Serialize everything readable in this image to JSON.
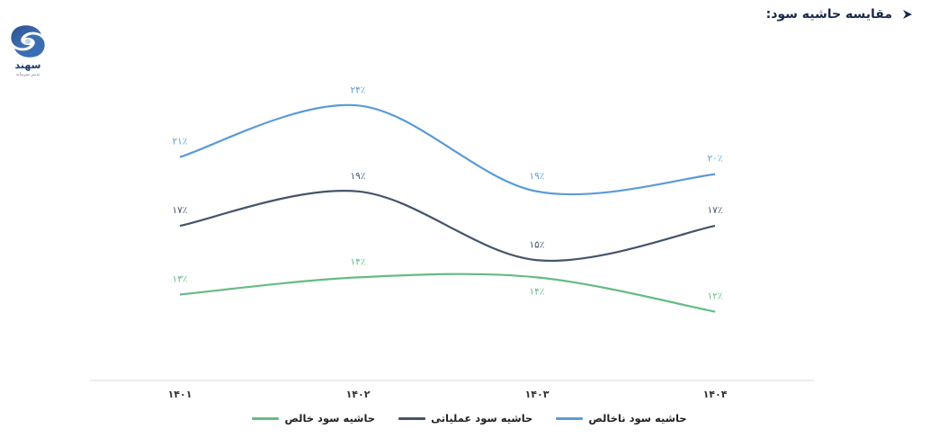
{
  "header": {
    "title": "مقایسه حاشیه سود:",
    "arrow_icon": "arrowhead-icon"
  },
  "logo": {
    "brand": "سهند",
    "tagline": "تدبیر سرمایه",
    "icon": "sahand-logo-icon"
  },
  "chart_data": {
    "type": "line",
    "categories": [
      "۱۴۰۱",
      "۱۴۰۲",
      "۱۴۰۳",
      "۱۴۰۴"
    ],
    "series": [
      {
        "name": "حاشیه سود ناخالص",
        "values": [
          21,
          24,
          19,
          20
        ],
        "labels": [
          "۲۱٪",
          "۲۴٪",
          "۱۹٪",
          "۲۰٪"
        ],
        "color": "#5b9bd5"
      },
      {
        "name": "حاشیه سود عملیاتی",
        "values": [
          17,
          19,
          15,
          17
        ],
        "labels": [
          "۱۷٪",
          "۱۹٪",
          "۱۵٪",
          "۱۷٪"
        ],
        "color": "#44546a"
      },
      {
        "name": "حاشیه سود خالص",
        "values": [
          13,
          14,
          14,
          12
        ],
        "labels": [
          "۱۳٪",
          "۱۴٪",
          "۱۴٪",
          "۱۲٪"
        ],
        "color": "#66bb86"
      }
    ],
    "ylim": [
      8,
      27
    ],
    "grid": false,
    "smooth": true,
    "legend_position": "bottom"
  }
}
